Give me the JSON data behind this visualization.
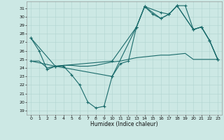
{
  "xlabel": "Humidex (Indice chaleur)",
  "bg_color": "#cce8e4",
  "line_color": "#1a6b6b",
  "grid_color": "#b0d4cf",
  "xlim": [
    -0.5,
    23.5
  ],
  "ylim": [
    18.5,
    31.8
  ],
  "yticks": [
    19,
    20,
    21,
    22,
    23,
    24,
    25,
    26,
    27,
    28,
    29,
    30,
    31
  ],
  "xticks": [
    0,
    1,
    2,
    3,
    4,
    5,
    6,
    7,
    8,
    9,
    10,
    11,
    12,
    13,
    14,
    15,
    16,
    17,
    18,
    19,
    20,
    21,
    22,
    23
  ],
  "line1_x": [
    0,
    1,
    2,
    3,
    4,
    5,
    6,
    7,
    8,
    9,
    10,
    11,
    12,
    13,
    14,
    15,
    16,
    17,
    18,
    19,
    20,
    21,
    22,
    23
  ],
  "line1_y": [
    27.5,
    26.0,
    23.8,
    24.2,
    24.2,
    23.2,
    22.0,
    20.0,
    19.3,
    19.5,
    23.0,
    24.5,
    24.8,
    28.8,
    31.2,
    30.3,
    29.8,
    30.3,
    31.3,
    31.3,
    28.5,
    28.8,
    27.2,
    25.0
  ],
  "line2_x": [
    0,
    1,
    2,
    3,
    4,
    5,
    6,
    7,
    8,
    9,
    10,
    11,
    12,
    13,
    14,
    15,
    16,
    17,
    18,
    19,
    20,
    21,
    22,
    23
  ],
  "line2_y": [
    24.8,
    24.8,
    24.0,
    24.2,
    24.3,
    24.3,
    24.2,
    24.2,
    24.3,
    24.5,
    24.7,
    24.8,
    25.0,
    25.2,
    25.3,
    25.4,
    25.5,
    25.5,
    25.6,
    25.7,
    25.0,
    25.0,
    25.0,
    25.0
  ],
  "line3_x": [
    0,
    3,
    10,
    13,
    14,
    16,
    17,
    18,
    20,
    21,
    22,
    23
  ],
  "line3_y": [
    27.5,
    24.2,
    24.8,
    28.8,
    31.2,
    30.5,
    30.3,
    31.3,
    28.5,
    28.8,
    27.2,
    25.0
  ],
  "line4_x": [
    0,
    3,
    10,
    13,
    14,
    16,
    17,
    18,
    20,
    21,
    22,
    23
  ],
  "line4_y": [
    24.8,
    24.2,
    23.0,
    28.8,
    31.2,
    29.8,
    30.3,
    31.3,
    28.5,
    28.8,
    27.2,
    25.0
  ]
}
